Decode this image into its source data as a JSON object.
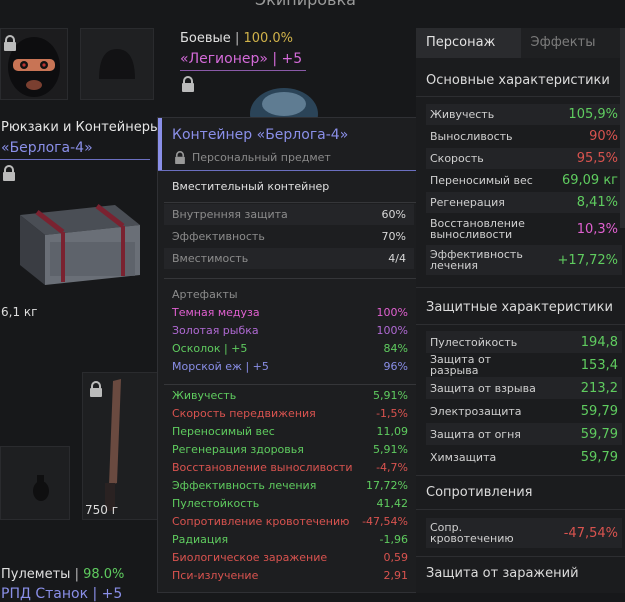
{
  "header": {
    "title_partial": "Экипировка"
  },
  "left": {
    "backpack_label": "Рюкзаки и Контейнеры",
    "backpack_name": "«Берлога-4»",
    "backpack_weight": "6,1 кг",
    "melee_weight": "750 г",
    "mg_label": "Пулеметы",
    "mg_sep": "|",
    "mg_value": "98.0%",
    "mg_item_partial": "РПД Станок | +5"
  },
  "armor": {
    "label": "Боевые",
    "sep": "|",
    "value": "100.0%",
    "name": "«Легионер» | +5"
  },
  "tooltip": {
    "title": "Контейнер «Берлога-4»",
    "subtitle": "Персональный предмет",
    "description": "Вместительный контейнер",
    "stats": [
      {
        "label": "Внутренняя защита",
        "value": "60%"
      },
      {
        "label": "Эффективность",
        "value": "70%"
      },
      {
        "label": "Вместимость",
        "value": "4/4"
      }
    ],
    "artifacts_title": "Артефакты",
    "artifacts": [
      {
        "name": "Темная медуза",
        "value": "100%",
        "color": "#e060d0"
      },
      {
        "name": "Золотая рыбка",
        "value": "100%",
        "color": "#b06ad4"
      },
      {
        "name": "Осколок | +5",
        "value": "84%",
        "color": "#5fcc5f"
      },
      {
        "name": "Морской еж | +5",
        "value": "96%",
        "color": "#8a8fe8"
      }
    ],
    "effects": [
      {
        "name": "Живучесть",
        "value": "5,91%",
        "color": "#5fcc5f"
      },
      {
        "name": "Скорость передвижения",
        "value": "-1,5%",
        "color": "#d9534f"
      },
      {
        "name": "Переносимый вес",
        "value": "11,09",
        "color": "#5fcc5f"
      },
      {
        "name": "Регенерация здоровья",
        "value": "5,91%",
        "color": "#5fcc5f"
      },
      {
        "name": "Восстановление выносливости",
        "value": "-4,7%",
        "color": "#d9534f"
      },
      {
        "name": "Эффективность лечения",
        "value": "17,72%",
        "color": "#5fcc5f"
      },
      {
        "name": "Пулестойкость",
        "value": "41,42",
        "color": "#5fcc5f"
      },
      {
        "name": "Сопротивление кровотечению",
        "value": "-47,54%",
        "color": "#d9534f"
      },
      {
        "name": "Радиация",
        "value": "-1,96",
        "color": "#5fcc5f"
      },
      {
        "name": "Биологическое заражение",
        "value": "0,59",
        "color": "#d9534f"
      },
      {
        "name": "Пси-излучение",
        "value": "2,91",
        "color": "#d9534f"
      }
    ]
  },
  "panel": {
    "tab_character": "Персонаж",
    "tab_effects": "Эффекты",
    "main_title": "Основные характеристики",
    "main_stats": [
      {
        "label": "Живучесть",
        "value": "105,9%",
        "color": "#5fcc5f"
      },
      {
        "label": "Выносливость",
        "value": "90%",
        "color": "#d9534f"
      },
      {
        "label": "Скорость",
        "value": "95,5%",
        "color": "#d9534f"
      },
      {
        "label": "Переносимый вес",
        "value": "69,09 кг",
        "color": "#5fcc5f"
      },
      {
        "label": "Регенерация",
        "value": "8,41%",
        "color": "#5fcc5f"
      },
      {
        "label": "Восстановление выносливости",
        "value": "10,3%",
        "color": "#e060d0"
      },
      {
        "label": "Эффективность лечения",
        "value": "+17,72%",
        "color": "#5fcc5f"
      }
    ],
    "protect_title": "Защитные характеристики",
    "protect_stats": [
      {
        "label": "Пулестойкость",
        "value": "194,8",
        "color": "#5fcc5f"
      },
      {
        "label": "Защита от разрыва",
        "value": "153,4",
        "color": "#5fcc5f"
      },
      {
        "label": "Защита от взрыва",
        "value": "213,2",
        "color": "#5fcc5f"
      },
      {
        "label": "Электрозащита",
        "value": "59,79",
        "color": "#5fcc5f"
      },
      {
        "label": "Защита от огня",
        "value": "59,79",
        "color": "#5fcc5f"
      },
      {
        "label": "Химзащита",
        "value": "59,79",
        "color": "#5fcc5f"
      }
    ],
    "resist_title": "Сопротивления",
    "resist_stats": [
      {
        "label": "Сопр. кровотечению",
        "value": "-47,54%",
        "color": "#d9534f"
      }
    ],
    "infect_title": "Защита от заражений"
  }
}
